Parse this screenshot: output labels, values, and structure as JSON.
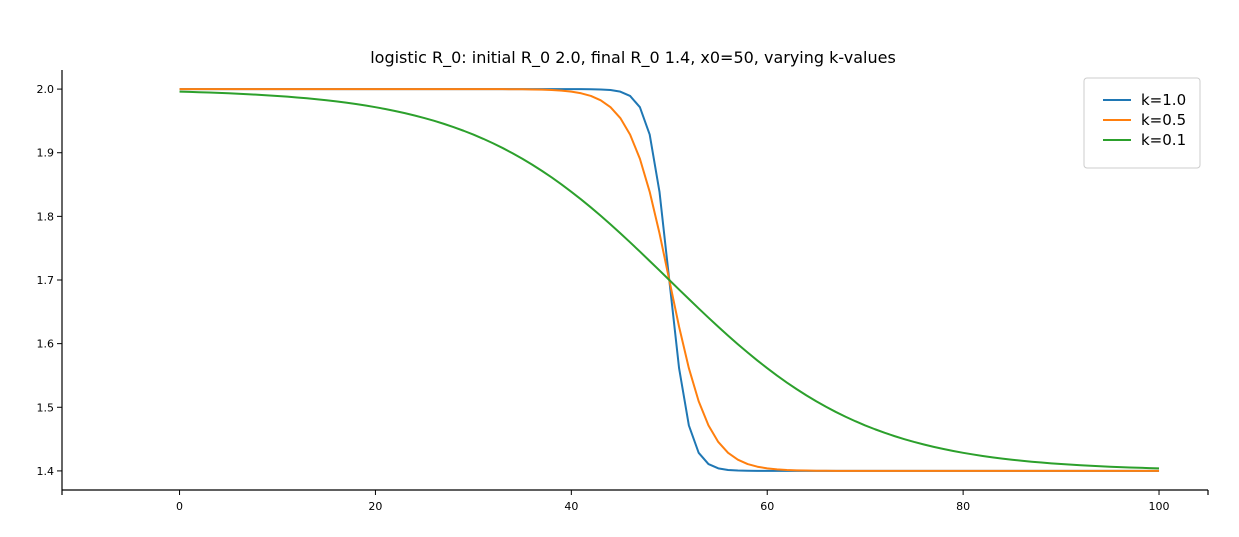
{
  "chart_data": {
    "type": "line",
    "title": "logistic R_0: initial R_0 2.0, final R_0 1.4, x0=50, varying k-values",
    "xlabel": "",
    "ylabel": "",
    "xlim": [
      -12,
      105
    ],
    "ylim": [
      1.37,
      2.03
    ],
    "xticks": [
      0,
      20,
      40,
      60,
      80,
      100
    ],
    "yticks": [
      1.4,
      1.5,
      1.6,
      1.7,
      1.8,
      1.9,
      2.0
    ],
    "xtick_labels": [
      "0",
      "20",
      "40",
      "60",
      "80",
      "100"
    ],
    "ytick_labels": [
      "1.4",
      "1.5",
      "1.6",
      "1.7",
      "1.8",
      "1.9",
      "2.0"
    ],
    "grid": false,
    "legend_position": "top-right",
    "model": {
      "form": "logistic",
      "initial_R0": 2.0,
      "final_R0": 1.4,
      "x0": 50,
      "x_start": 0,
      "x_end": 100,
      "x_step": 1
    },
    "series": [
      {
        "name": "k=1.0",
        "k": 1.0,
        "color": "#1f77b4"
      },
      {
        "name": "k=0.5",
        "k": 0.5,
        "color": "#ff7f0e"
      },
      {
        "name": "k=0.1",
        "k": 0.1,
        "color": "#2ca02c"
      }
    ]
  }
}
